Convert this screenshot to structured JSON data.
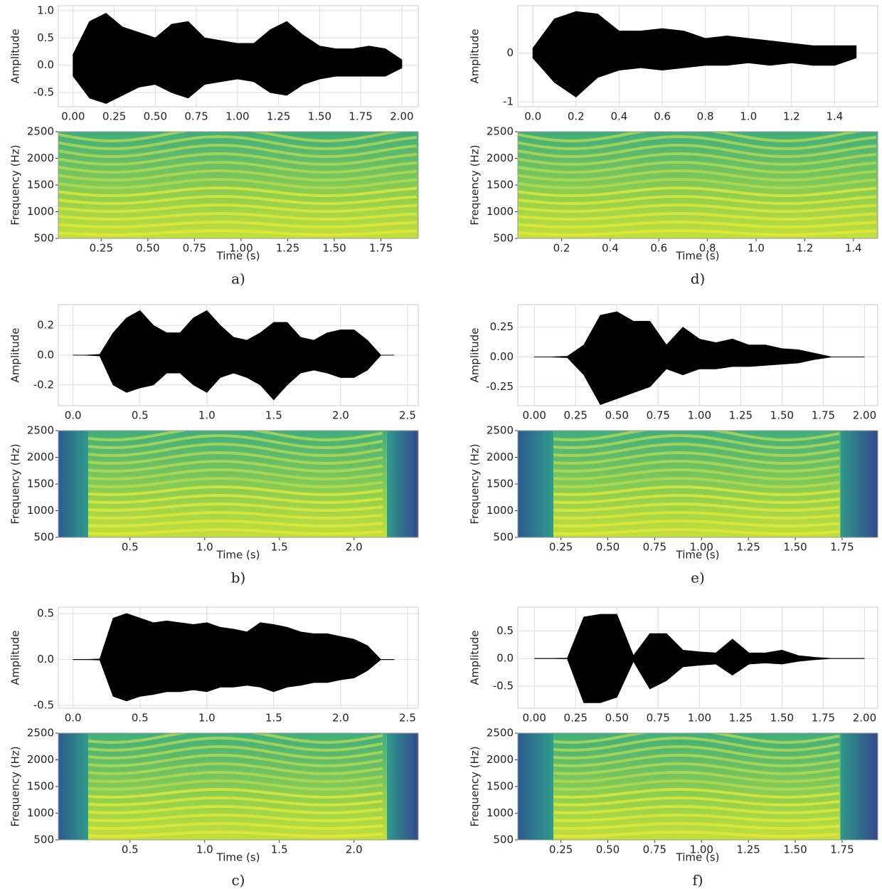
{
  "chart_data": [
    {
      "type": "waveform_spectrogram",
      "caption": "a)",
      "waveform": {
        "ylabel": "Amplitude",
        "color": "#000000",
        "grid": true,
        "x": [
          0,
          0.1,
          0.2,
          0.3,
          0.4,
          0.5,
          0.6,
          0.7,
          0.8,
          0.9,
          1.0,
          1.1,
          1.2,
          1.3,
          1.4,
          1.5,
          1.6,
          1.7,
          1.8,
          1.9,
          2.0
        ],
        "upper": [
          0.2,
          0.8,
          0.95,
          0.7,
          0.6,
          0.5,
          0.75,
          0.8,
          0.5,
          0.45,
          0.4,
          0.4,
          0.65,
          0.8,
          0.55,
          0.35,
          0.3,
          0.3,
          0.35,
          0.3,
          0.1
        ],
        "lower": [
          -0.2,
          -0.6,
          -0.7,
          -0.55,
          -0.4,
          -0.35,
          -0.5,
          -0.6,
          -0.35,
          -0.3,
          -0.25,
          -0.3,
          -0.5,
          -0.55,
          -0.35,
          -0.25,
          -0.2,
          -0.2,
          -0.2,
          -0.2,
          -0.05
        ],
        "xlim": [
          -0.09,
          2.1
        ],
        "ylim": [
          -0.76,
          1.09
        ],
        "xticks": [
          {
            "value": 0,
            "label": "0.00"
          },
          0.25,
          {
            "value": 0.5,
            "label": "0.50"
          },
          0.75,
          {
            "value": 1,
            "label": "1.00"
          },
          1.25,
          {
            "value": 1.5,
            "label": "1.50"
          },
          1.75,
          {
            "value": 2,
            "label": "2.00"
          }
        ],
        "yticks": [
          -0.5,
          {
            "value": 0,
            "label": "0.0"
          },
          0.5,
          {
            "value": 1,
            "label": "1.0"
          }
        ]
      },
      "spectrogram": {
        "ylabel": "Frequency (Hz)",
        "xlabel": "Time (s)",
        "xlim": [
          0.02,
          1.95
        ],
        "ylim": [
          500,
          2500
        ],
        "xticks": [
          0.25,
          {
            "value": 0.5,
            "label": "0.50"
          },
          0.75,
          {
            "value": 1,
            "label": "1.00"
          },
          1.25,
          {
            "value": 1.5,
            "label": "1.50"
          },
          1.75
        ],
        "yticks": [
          500,
          1000,
          1500,
          2000,
          2500
        ]
      }
    },
    {
      "type": "waveform_spectrogram",
      "caption": "b)",
      "waveform": {
        "ylabel": "Amplitude",
        "color": "#000000",
        "grid": true,
        "x": [
          0,
          0.1,
          0.2,
          0.3,
          0.4,
          0.5,
          0.6,
          0.7,
          0.8,
          0.9,
          1.0,
          1.1,
          1.2,
          1.3,
          1.4,
          1.5,
          1.6,
          1.7,
          1.8,
          1.9,
          2.0,
          2.1,
          2.2,
          2.3,
          2.4
        ],
        "upper": [
          0,
          0,
          0.005,
          0.15,
          0.25,
          0.3,
          0.2,
          0.15,
          0.15,
          0.25,
          0.3,
          0.2,
          0.12,
          0.1,
          0.15,
          0.22,
          0.22,
          0.12,
          0.1,
          0.15,
          0.17,
          0.17,
          0.1,
          0,
          0
        ],
        "lower": [
          0,
          0,
          -0.005,
          -0.2,
          -0.25,
          -0.22,
          -0.2,
          -0.12,
          -0.12,
          -0.2,
          -0.25,
          -0.15,
          -0.12,
          -0.15,
          -0.2,
          -0.3,
          -0.2,
          -0.12,
          -0.1,
          -0.12,
          -0.15,
          -0.15,
          -0.1,
          0,
          0
        ],
        "xlim": [
          -0.11,
          2.58
        ],
        "ylim": [
          -0.34,
          0.34
        ],
        "xticks": [
          {
            "value": 0,
            "label": "0.0"
          },
          0.5,
          {
            "value": 1,
            "label": "1.0"
          },
          1.5,
          {
            "value": 2,
            "label": "2.0"
          },
          2.5
        ],
        "yticks": [
          -0.2,
          {
            "value": 0,
            "label": "0.0"
          },
          0.2
        ]
      },
      "spectrogram": {
        "ylabel": "Frequency (Hz)",
        "xlabel": "Time (s)",
        "xlim": [
          0.02,
          2.43
        ],
        "ylim": [
          500,
          2500
        ],
        "xticks": [
          0.5,
          {
            "value": 1,
            "label": "1.0"
          },
          1.5,
          {
            "value": 2,
            "label": "2.0"
          }
        ],
        "yticks": [
          500,
          1000,
          1500,
          2000,
          2500
        ],
        "active": [
          0.22,
          2.22
        ]
      }
    },
    {
      "type": "waveform_spectrogram",
      "caption": "c)",
      "waveform": {
        "ylabel": "Amplitude",
        "color": "#000000",
        "grid": true,
        "x": [
          0,
          0.1,
          0.2,
          0.3,
          0.4,
          0.5,
          0.6,
          0.7,
          0.8,
          0.9,
          1.0,
          1.1,
          1.2,
          1.3,
          1.4,
          1.5,
          1.6,
          1.7,
          1.8,
          1.9,
          2.0,
          2.1,
          2.2,
          2.3,
          2.4
        ],
        "upper": [
          0,
          0,
          0.005,
          0.45,
          0.5,
          0.45,
          0.4,
          0.42,
          0.4,
          0.38,
          0.4,
          0.35,
          0.33,
          0.3,
          0.4,
          0.38,
          0.35,
          0.3,
          0.28,
          0.28,
          0.25,
          0.22,
          0.15,
          0,
          0
        ],
        "lower": [
          0,
          0,
          -0.005,
          -0.4,
          -0.45,
          -0.4,
          -0.38,
          -0.35,
          -0.35,
          -0.33,
          -0.35,
          -0.3,
          -0.3,
          -0.28,
          -0.3,
          -0.35,
          -0.3,
          -0.28,
          -0.25,
          -0.25,
          -0.22,
          -0.2,
          -0.12,
          0,
          0
        ],
        "xlim": [
          -0.11,
          2.58
        ],
        "ylim": [
          -0.53,
          0.57
        ],
        "xticks": [
          {
            "value": 0,
            "label": "0.0"
          },
          0.5,
          {
            "value": 1,
            "label": "1.0"
          },
          1.5,
          {
            "value": 2,
            "label": "2.0"
          },
          2.5
        ],
        "yticks": [
          -0.5,
          {
            "value": 0,
            "label": "0.0"
          },
          0.5
        ]
      },
      "spectrogram": {
        "ylabel": "Frequency (Hz)",
        "xlabel": "Time (s)",
        "xlim": [
          0.02,
          2.43
        ],
        "ylim": [
          500,
          2500
        ],
        "xticks": [
          0.5,
          {
            "value": 1,
            "label": "1.0"
          },
          1.5,
          {
            "value": 2,
            "label": "2.0"
          }
        ],
        "yticks": [
          500,
          1000,
          1500,
          2000,
          2500
        ],
        "active": [
          0.22,
          2.22
        ]
      }
    },
    {
      "type": "waveform_spectrogram",
      "caption": "d)",
      "waveform": {
        "ylabel": "Amplitude",
        "color": "#000000",
        "grid": true,
        "x": [
          0,
          0.1,
          0.2,
          0.3,
          0.4,
          0.5,
          0.6,
          0.7,
          0.8,
          0.9,
          1.0,
          1.1,
          1.2,
          1.3,
          1.4,
          1.5
        ],
        "upper": [
          0.1,
          0.7,
          0.85,
          0.8,
          0.45,
          0.45,
          0.5,
          0.45,
          0.3,
          0.35,
          0.3,
          0.25,
          0.2,
          0.15,
          0.15,
          0.15
        ],
        "lower": [
          -0.1,
          -0.6,
          -0.9,
          -0.5,
          -0.35,
          -0.3,
          -0.35,
          -0.3,
          -0.25,
          -0.25,
          -0.2,
          -0.25,
          -0.2,
          -0.25,
          -0.25,
          -0.1
        ],
        "xlim": [
          -0.07,
          1.6
        ],
        "ylim": [
          -1.1,
          0.97
        ],
        "xticks": [
          {
            "value": 0,
            "label": "0.0"
          },
          0.2,
          0.4,
          0.6,
          0.8,
          {
            "value": 1,
            "label": "1.0"
          },
          1.2,
          1.4
        ],
        "yticks": [
          -1,
          0
        ]
      },
      "spectrogram": {
        "ylabel": "Frequency (Hz)",
        "xlabel": "Time (s)",
        "xlim": [
          0.02,
          1.5
        ],
        "ylim": [
          500,
          2500
        ],
        "xticks": [
          0.2,
          0.4,
          0.6,
          0.8,
          {
            "value": 1,
            "label": "1.0"
          },
          1.2,
          1.4
        ],
        "yticks": [
          500,
          1000,
          1500,
          2000,
          2500
        ]
      }
    },
    {
      "type": "waveform_spectrogram",
      "caption": "e)",
      "waveform": {
        "ylabel": "Amplitude",
        "color": "#000000",
        "grid": true,
        "x": [
          0,
          0.1,
          0.2,
          0.3,
          0.4,
          0.5,
          0.6,
          0.7,
          0.8,
          0.9,
          1.0,
          1.1,
          1.2,
          1.3,
          1.4,
          1.5,
          1.6,
          1.7,
          1.8,
          1.9,
          2.0
        ],
        "upper": [
          0,
          0,
          0.005,
          0.1,
          0.35,
          0.38,
          0.3,
          0.3,
          0.1,
          0.25,
          0.15,
          0.12,
          0.15,
          0.1,
          0.1,
          0.07,
          0.06,
          0.03,
          0,
          0,
          0
        ],
        "lower": [
          0,
          0,
          -0.005,
          -0.15,
          -0.4,
          -0.35,
          -0.3,
          -0.25,
          -0.1,
          -0.15,
          -0.1,
          -0.1,
          -0.08,
          -0.08,
          -0.07,
          -0.06,
          -0.05,
          -0.02,
          0,
          0,
          0
        ],
        "xlim": [
          -0.1,
          2.08
        ],
        "ylim": [
          -0.41,
          0.44
        ],
        "xticks": [
          {
            "value": 0,
            "label": "0.00"
          },
          0.25,
          {
            "value": 0.5,
            "label": "0.50"
          },
          0.75,
          {
            "value": 1,
            "label": "1.00"
          },
          1.25,
          {
            "value": 1.5,
            "label": "1.50"
          },
          1.75,
          {
            "value": 2,
            "label": "2.00"
          }
        ],
        "yticks": [
          -0.25,
          {
            "value": 0,
            "label": "0.00"
          },
          0.25
        ]
      },
      "spectrogram": {
        "ylabel": "Frequency (Hz)",
        "xlabel": "Time (s)",
        "xlim": [
          0.02,
          1.94
        ],
        "ylim": [
          500,
          2500
        ],
        "xticks": [
          0.25,
          {
            "value": 0.5,
            "label": "0.50"
          },
          0.75,
          {
            "value": 1,
            "label": "1.00"
          },
          1.25,
          {
            "value": 1.5,
            "label": "1.50"
          },
          1.75
        ],
        "yticks": [
          500,
          1000,
          1500,
          2000,
          2500
        ],
        "active": [
          0.21,
          1.74
        ]
      }
    },
    {
      "type": "waveform_spectrogram",
      "caption": "f)",
      "waveform": {
        "ylabel": "Amplitude",
        "color": "#000000",
        "grid": true,
        "x": [
          0,
          0.1,
          0.2,
          0.3,
          0.4,
          0.5,
          0.6,
          0.7,
          0.8,
          0.9,
          1.0,
          1.1,
          1.2,
          1.3,
          1.4,
          1.5,
          1.6,
          1.7,
          1.8,
          1.9,
          2.0
        ],
        "upper": [
          0,
          0,
          0.005,
          0.75,
          0.8,
          0.8,
          0.05,
          0.45,
          0.45,
          0.15,
          0.12,
          0.1,
          0.35,
          0.1,
          0.1,
          0.15,
          0.05,
          0.02,
          0,
          0,
          0
        ],
        "lower": [
          0,
          0,
          -0.005,
          -0.8,
          -0.8,
          -0.7,
          -0.05,
          -0.55,
          -0.4,
          -0.15,
          -0.12,
          -0.1,
          -0.3,
          -0.1,
          -0.08,
          -0.1,
          -0.05,
          -0.02,
          0,
          0,
          0
        ],
        "xlim": [
          -0.1,
          2.08
        ],
        "ylim": [
          -0.9,
          0.93
        ],
        "xticks": [
          {
            "value": 0,
            "label": "0.00"
          },
          0.25,
          {
            "value": 0.5,
            "label": "0.50"
          },
          0.75,
          {
            "value": 1,
            "label": "1.00"
          },
          1.25,
          {
            "value": 1.5,
            "label": "1.50"
          },
          1.75,
          {
            "value": 2,
            "label": "2.00"
          }
        ],
        "yticks": [
          -0.5,
          {
            "value": 0,
            "label": "0.0"
          },
          0.5
        ]
      },
      "spectrogram": {
        "ylabel": "Frequency (Hz)",
        "xlabel": "Time (s)",
        "xlim": [
          0.02,
          1.94
        ],
        "ylim": [
          500,
          2500
        ],
        "xticks": [
          0.25,
          {
            "value": 0.5,
            "label": "0.50"
          },
          0.75,
          {
            "value": 1,
            "label": "1.00"
          },
          1.25,
          {
            "value": 1.5,
            "label": "1.50"
          },
          1.75
        ],
        "yticks": [
          500,
          1000,
          1500,
          2000,
          2500
        ],
        "active": [
          0.21,
          1.74
        ]
      }
    }
  ]
}
